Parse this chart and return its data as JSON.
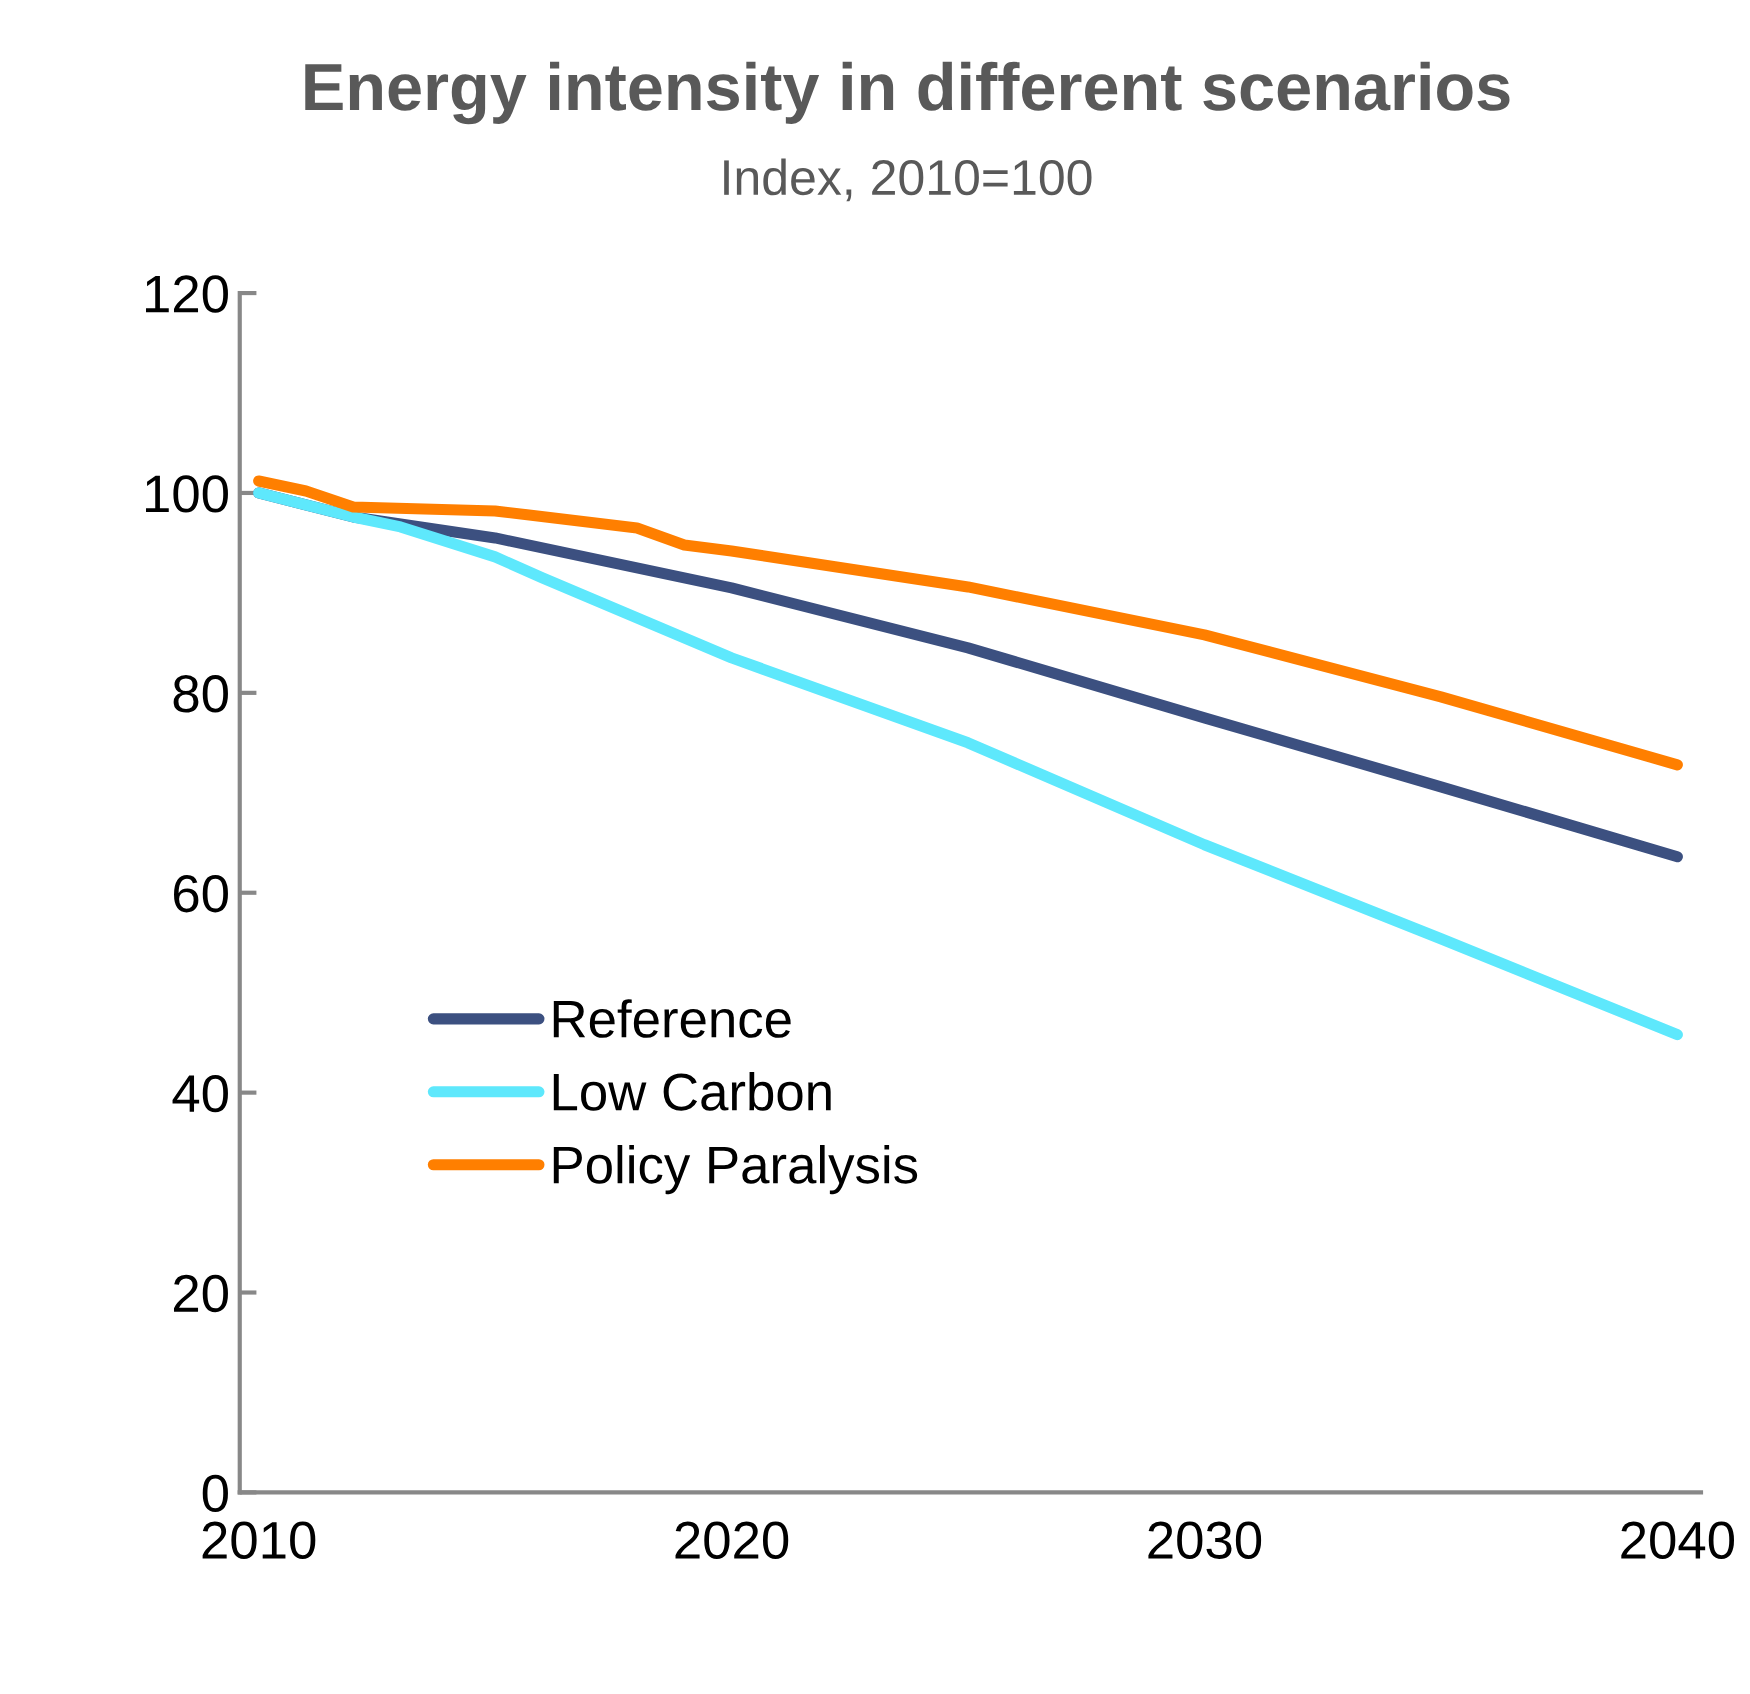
{
  "chart_data": {
    "type": "line",
    "title": "Energy intensity in different scenarios",
    "subtitle": "Index, 2010=100",
    "xlim": [
      2009.6,
      2040.5
    ],
    "xticks": [
      2010,
      2020,
      2030,
      2040
    ],
    "ylim": [
      0,
      120
    ],
    "yticks": [
      0,
      20,
      40,
      60,
      80,
      100,
      120
    ],
    "grid": false,
    "legend": "left",
    "marker": "none",
    "line_style": "solid",
    "series": [
      {
        "name": "Reference",
        "color": "#3c5080",
        "x": [
          2010,
          2012,
          2015,
          2020,
          2025,
          2030,
          2035,
          2040
        ],
        "values": [
          100,
          97.6,
          95.5,
          90.5,
          84.5,
          77.5,
          70.6,
          63.6
        ]
      },
      {
        "name": "Low Carbon",
        "color": "#5ee8fc",
        "x": [
          2010,
          2012,
          2013,
          2015,
          2016,
          2020,
          2025,
          2030,
          2035,
          2040
        ],
        "values": [
          100,
          97.6,
          96.6,
          93.6,
          91.5,
          83.5,
          75,
          64.8,
          55.4,
          45.8
        ]
      },
      {
        "name": "Policy Paralysis",
        "color": "#ff7f00",
        "x": [
          2010,
          2011,
          2012,
          2015,
          2018,
          2019,
          2020,
          2025,
          2030,
          2035,
          2040
        ],
        "values": [
          101.2,
          100.2,
          98.6,
          98.2,
          96.5,
          94.8,
          94.2,
          90.6,
          85.8,
          79.6,
          72.8
        ]
      }
    ]
  }
}
